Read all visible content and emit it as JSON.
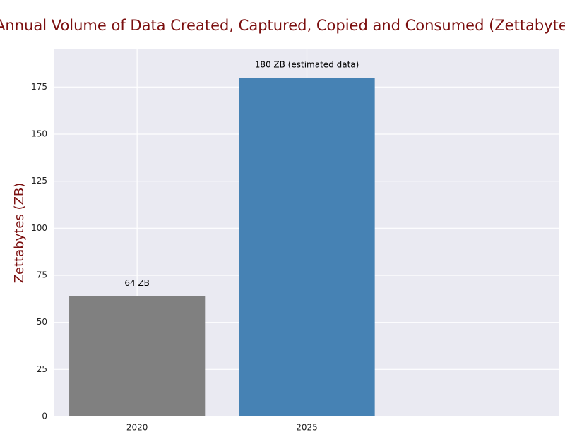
{
  "chart_data": {
    "type": "bar",
    "title": "Annual Volume of Data Created, Captured, Copied and Consumed (Zettabytes)",
    "y_label": "Zettabytes (ZB)",
    "categories": [
      "2020",
      "2025"
    ],
    "values": [
      64,
      180
    ],
    "value_labels": [
      "64 ZB",
      "180 ZB (estimated data)"
    ],
    "colors": [
      "#808080",
      "#4682b4"
    ],
    "ylim": [
      0,
      195
    ],
    "yticks": [
      0,
      25,
      50,
      75,
      100,
      125,
      150,
      175
    ],
    "grid": true
  }
}
